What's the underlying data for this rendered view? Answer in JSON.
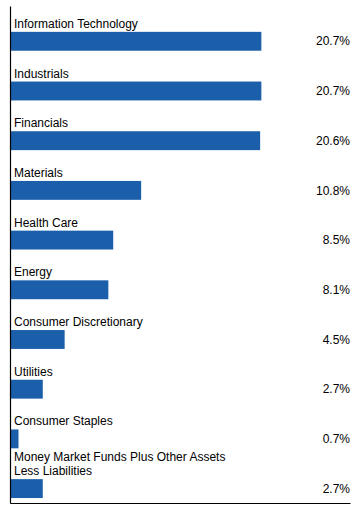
{
  "chart_data": {
    "type": "bar",
    "orientation": "horizontal",
    "categories": [
      "Money Market Funds Plus Other Assets\nLess Liabilities",
      "Consumer Staples",
      "Utilities",
      "Consumer Discretionary",
      "Energy",
      "Health Care",
      "Materials",
      "Financials",
      "Industrials",
      "Information Technology"
    ],
    "values": [
      2.7,
      0.7,
      2.7,
      4.5,
      8.1,
      8.5,
      10.8,
      20.6,
      20.7,
      20.7
    ],
    "value_labels": [
      "2.7%",
      "0.7%",
      "2.7%",
      "4.5%",
      "8.1%",
      "8.5%",
      "10.8%",
      "20.6%",
      "20.7%",
      "20.7%"
    ],
    "data_labels": true,
    "color": "#1B5FAA",
    "xlim": [
      0,
      28
    ],
    "xticks": [],
    "tick_labels": false,
    "grid": false
  }
}
